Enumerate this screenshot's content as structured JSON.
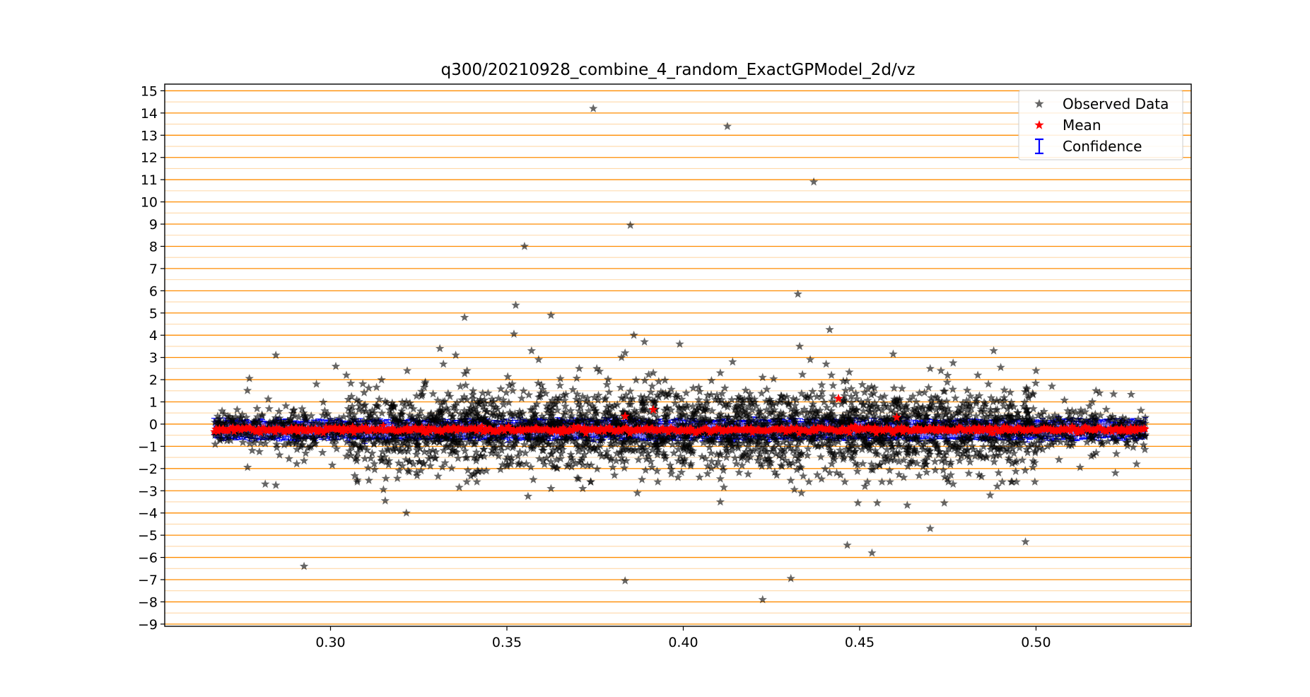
{
  "chart_data": {
    "type": "scatter",
    "title": "q300/20210928_combine_4_random_ExactGPModel_2d/vz",
    "xlabel": "",
    "ylabel": "",
    "xlim": [
      0.253,
      0.544
    ],
    "ylim": [
      -9.1,
      15.3
    ],
    "x_ticks": [
      0.3,
      0.35,
      0.4,
      0.45,
      0.5
    ],
    "x_tick_labels": [
      "0.30",
      "0.35",
      "0.40",
      "0.45",
      "0.50"
    ],
    "y_ticks": [
      -9,
      -8,
      -7,
      -6,
      -5,
      -4,
      -3,
      -2,
      -1,
      0,
      1,
      2,
      3,
      4,
      5,
      6,
      7,
      8,
      9,
      10,
      11,
      12,
      13,
      14,
      15
    ],
    "y_tick_labels": [
      "−9",
      "−8",
      "−7",
      "−6",
      "−5",
      "−4",
      "−3",
      "−2",
      "−1",
      "0",
      "1",
      "2",
      "3",
      "4",
      "5",
      "6",
      "7",
      "8",
      "9",
      "10",
      "11",
      "12",
      "13",
      "14",
      "15"
    ],
    "grid": {
      "y_major": true,
      "y_minor": true,
      "x": false,
      "major_color": "#ff8c00",
      "minor_color": "#ffd8a8"
    },
    "legend": {
      "location": "top-right",
      "entries": [
        {
          "label": "Observed Data",
          "marker": "star",
          "color": "#000000"
        },
        {
          "label": "Mean",
          "marker": "star",
          "color": "#ff0000"
        },
        {
          "label": "Confidence",
          "marker": "errorbar",
          "color": "#0000ff"
        }
      ]
    },
    "series": [
      {
        "name": "Observed Data",
        "marker": "star",
        "color": "#000000",
        "alpha": 0.6,
        "x_range": [
          0.267,
          0.531
        ],
        "bulk_spread": 0.9,
        "outliers": [
          [
            0.3745,
            14.2
          ],
          [
            0.4125,
            13.4
          ],
          [
            0.437,
            10.9
          ],
          [
            0.385,
            8.95
          ],
          [
            0.355,
            8.0
          ],
          [
            0.4325,
            5.85
          ],
          [
            0.3525,
            5.35
          ],
          [
            0.3625,
            4.9
          ],
          [
            0.338,
            4.8
          ],
          [
            0.4415,
            4.25
          ],
          [
            0.352,
            4.05
          ],
          [
            0.386,
            4.0
          ],
          [
            0.389,
            3.7
          ],
          [
            0.399,
            3.6
          ],
          [
            0.433,
            3.5
          ],
          [
            0.331,
            3.4
          ],
          [
            0.357,
            3.3
          ],
          [
            0.488,
            3.3
          ],
          [
            0.3835,
            3.2
          ],
          [
            0.4595,
            3.15
          ],
          [
            0.2845,
            3.1
          ],
          [
            0.3355,
            3.1
          ],
          [
            0.3825,
            3.0
          ],
          [
            0.414,
            2.8
          ],
          [
            0.359,
            2.9
          ],
          [
            0.3015,
            2.6
          ],
          [
            0.332,
            2.7
          ],
          [
            0.436,
            2.9
          ],
          [
            0.4405,
            2.7
          ],
          [
            0.4765,
            2.75
          ],
          [
            0.49,
            2.55
          ],
          [
            0.3755,
            2.5
          ],
          [
            0.3705,
            2.5
          ],
          [
            0.5,
            2.4
          ],
          [
            0.47,
            2.5
          ],
          [
            0.3045,
            2.2
          ],
          [
            0.3915,
            2.3
          ],
          [
            0.4105,
            2.3
          ],
          [
            0.4225,
            2.1
          ],
          [
            0.442,
            2.2
          ],
          [
            0.4835,
            2.2
          ],
          [
            0.4865,
            1.8
          ],
          [
            0.277,
            2.05
          ],
          [
            0.296,
            1.8
          ],
          [
            0.5045,
            1.7
          ],
          [
            0.518,
            1.4
          ],
          [
            0.522,
            1.35
          ],
          [
            0.517,
            1.5
          ],
          [
            0.2925,
            -6.4
          ],
          [
            0.3835,
            -7.05
          ],
          [
            0.4305,
            -6.95
          ],
          [
            0.4225,
            -7.9
          ],
          [
            0.4465,
            -5.45
          ],
          [
            0.4535,
            -5.8
          ],
          [
            0.497,
            -5.3
          ],
          [
            0.47,
            -4.7
          ],
          [
            0.3215,
            -4.0
          ],
          [
            0.4495,
            -3.55
          ],
          [
            0.455,
            -3.55
          ],
          [
            0.4635,
            -3.65
          ],
          [
            0.474,
            -3.55
          ],
          [
            0.4105,
            -3.5
          ],
          [
            0.3155,
            -3.45
          ],
          [
            0.356,
            -3.25
          ],
          [
            0.4335,
            -3.1
          ],
          [
            0.387,
            -3.1
          ],
          [
            0.487,
            -3.2
          ],
          [
            0.315,
            -2.95
          ],
          [
            0.3365,
            -2.85
          ],
          [
            0.3415,
            -2.6
          ],
          [
            0.2815,
            -2.7
          ],
          [
            0.2845,
            -2.75
          ],
          [
            0.3625,
            -2.9
          ],
          [
            0.3715,
            -2.9
          ],
          [
            0.4115,
            -2.85
          ],
          [
            0.4515,
            -2.8
          ],
          [
            0.4765,
            -2.7
          ],
          [
            0.489,
            -2.8
          ],
          [
            0.4315,
            -2.95
          ],
          [
            0.3305,
            -2.35
          ],
          [
            0.3125,
            -2.05
          ],
          [
            0.3575,
            -2.5
          ],
          [
            0.3805,
            -2.3
          ],
          [
            0.3985,
            -2.4
          ],
          [
            0.4265,
            -2.3
          ],
          [
            0.4435,
            -2.2
          ],
          [
            0.4625,
            -2.4
          ],
          [
            0.5225,
            -2.2
          ],
          [
            0.5285,
            -1.8
          ],
          [
            0.5125,
            -1.95
          ],
          [
            0.5065,
            -1.6
          ],
          [
            0.2925,
            -1.65
          ],
          [
            0.3005,
            -1.85
          ],
          [
            0.3235,
            -1.8
          ]
        ]
      },
      {
        "name": "Mean",
        "marker": "star",
        "color": "#ff0000",
        "x_range": [
          0.267,
          0.531
        ],
        "level": -0.25,
        "bumps": [
          [
            0.3915,
            0.65
          ],
          [
            0.444,
            1.15
          ],
          [
            0.4605,
            0.3
          ],
          [
            0.3835,
            0.35
          ],
          [
            0.2925,
            -0.3
          ]
        ]
      },
      {
        "name": "Confidence",
        "marker": "errorbar",
        "color": "#0000ff",
        "x_range": [
          0.267,
          0.531
        ],
        "half_width": 0.4
      }
    ]
  }
}
